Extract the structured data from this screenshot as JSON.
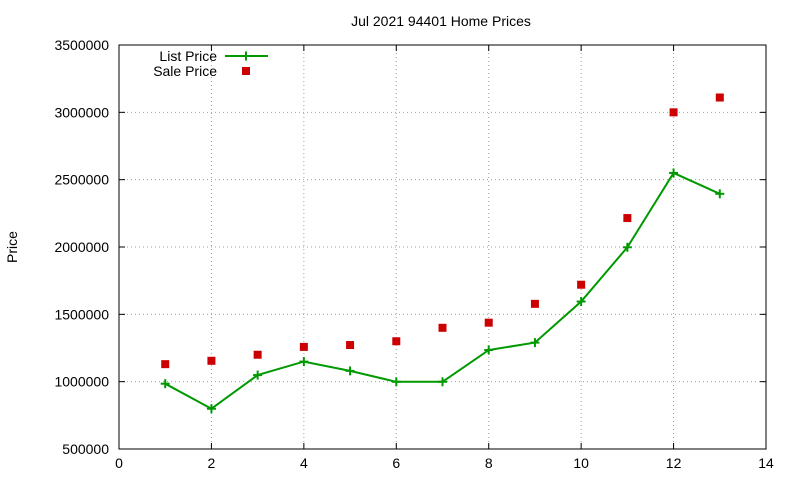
{
  "chart_data": {
    "type": "line",
    "title": "Jul 2021 94401 Home Prices",
    "xlabel": "",
    "ylabel": "Price",
    "xlim": [
      0,
      14
    ],
    "ylim": [
      500000,
      3500000
    ],
    "x_ticks": [
      "0",
      "2",
      "4",
      "6",
      "8",
      "10",
      "12",
      "14"
    ],
    "y_ticks": [
      "500000",
      "1000000",
      "1500000",
      "2000000",
      "2500000",
      "3000000",
      "3500000"
    ],
    "grid": true,
    "legend_position": "top-left",
    "series": [
      {
        "name": "List Price",
        "style": "line-with-plus-markers",
        "color": "#009900",
        "x": [
          1,
          2,
          3,
          4,
          5,
          6,
          7,
          8,
          9,
          10,
          11,
          12,
          13
        ],
        "y": [
          985000,
          799000,
          1049000,
          1149000,
          1080000,
          999000,
          999000,
          1235000,
          1290000,
          1595000,
          1998000,
          2550000,
          2395000
        ]
      },
      {
        "name": "Sale Price",
        "style": "square-markers",
        "color": "#cc0000",
        "x": [
          1,
          2,
          3,
          4,
          5,
          6,
          7,
          8,
          9,
          10,
          11,
          12,
          13
        ],
        "y": [
          1130000,
          1155000,
          1200000,
          1258000,
          1272000,
          1300000,
          1400000,
          1438000,
          1578000,
          1720000,
          2215000,
          3000000,
          3110000
        ]
      }
    ]
  }
}
